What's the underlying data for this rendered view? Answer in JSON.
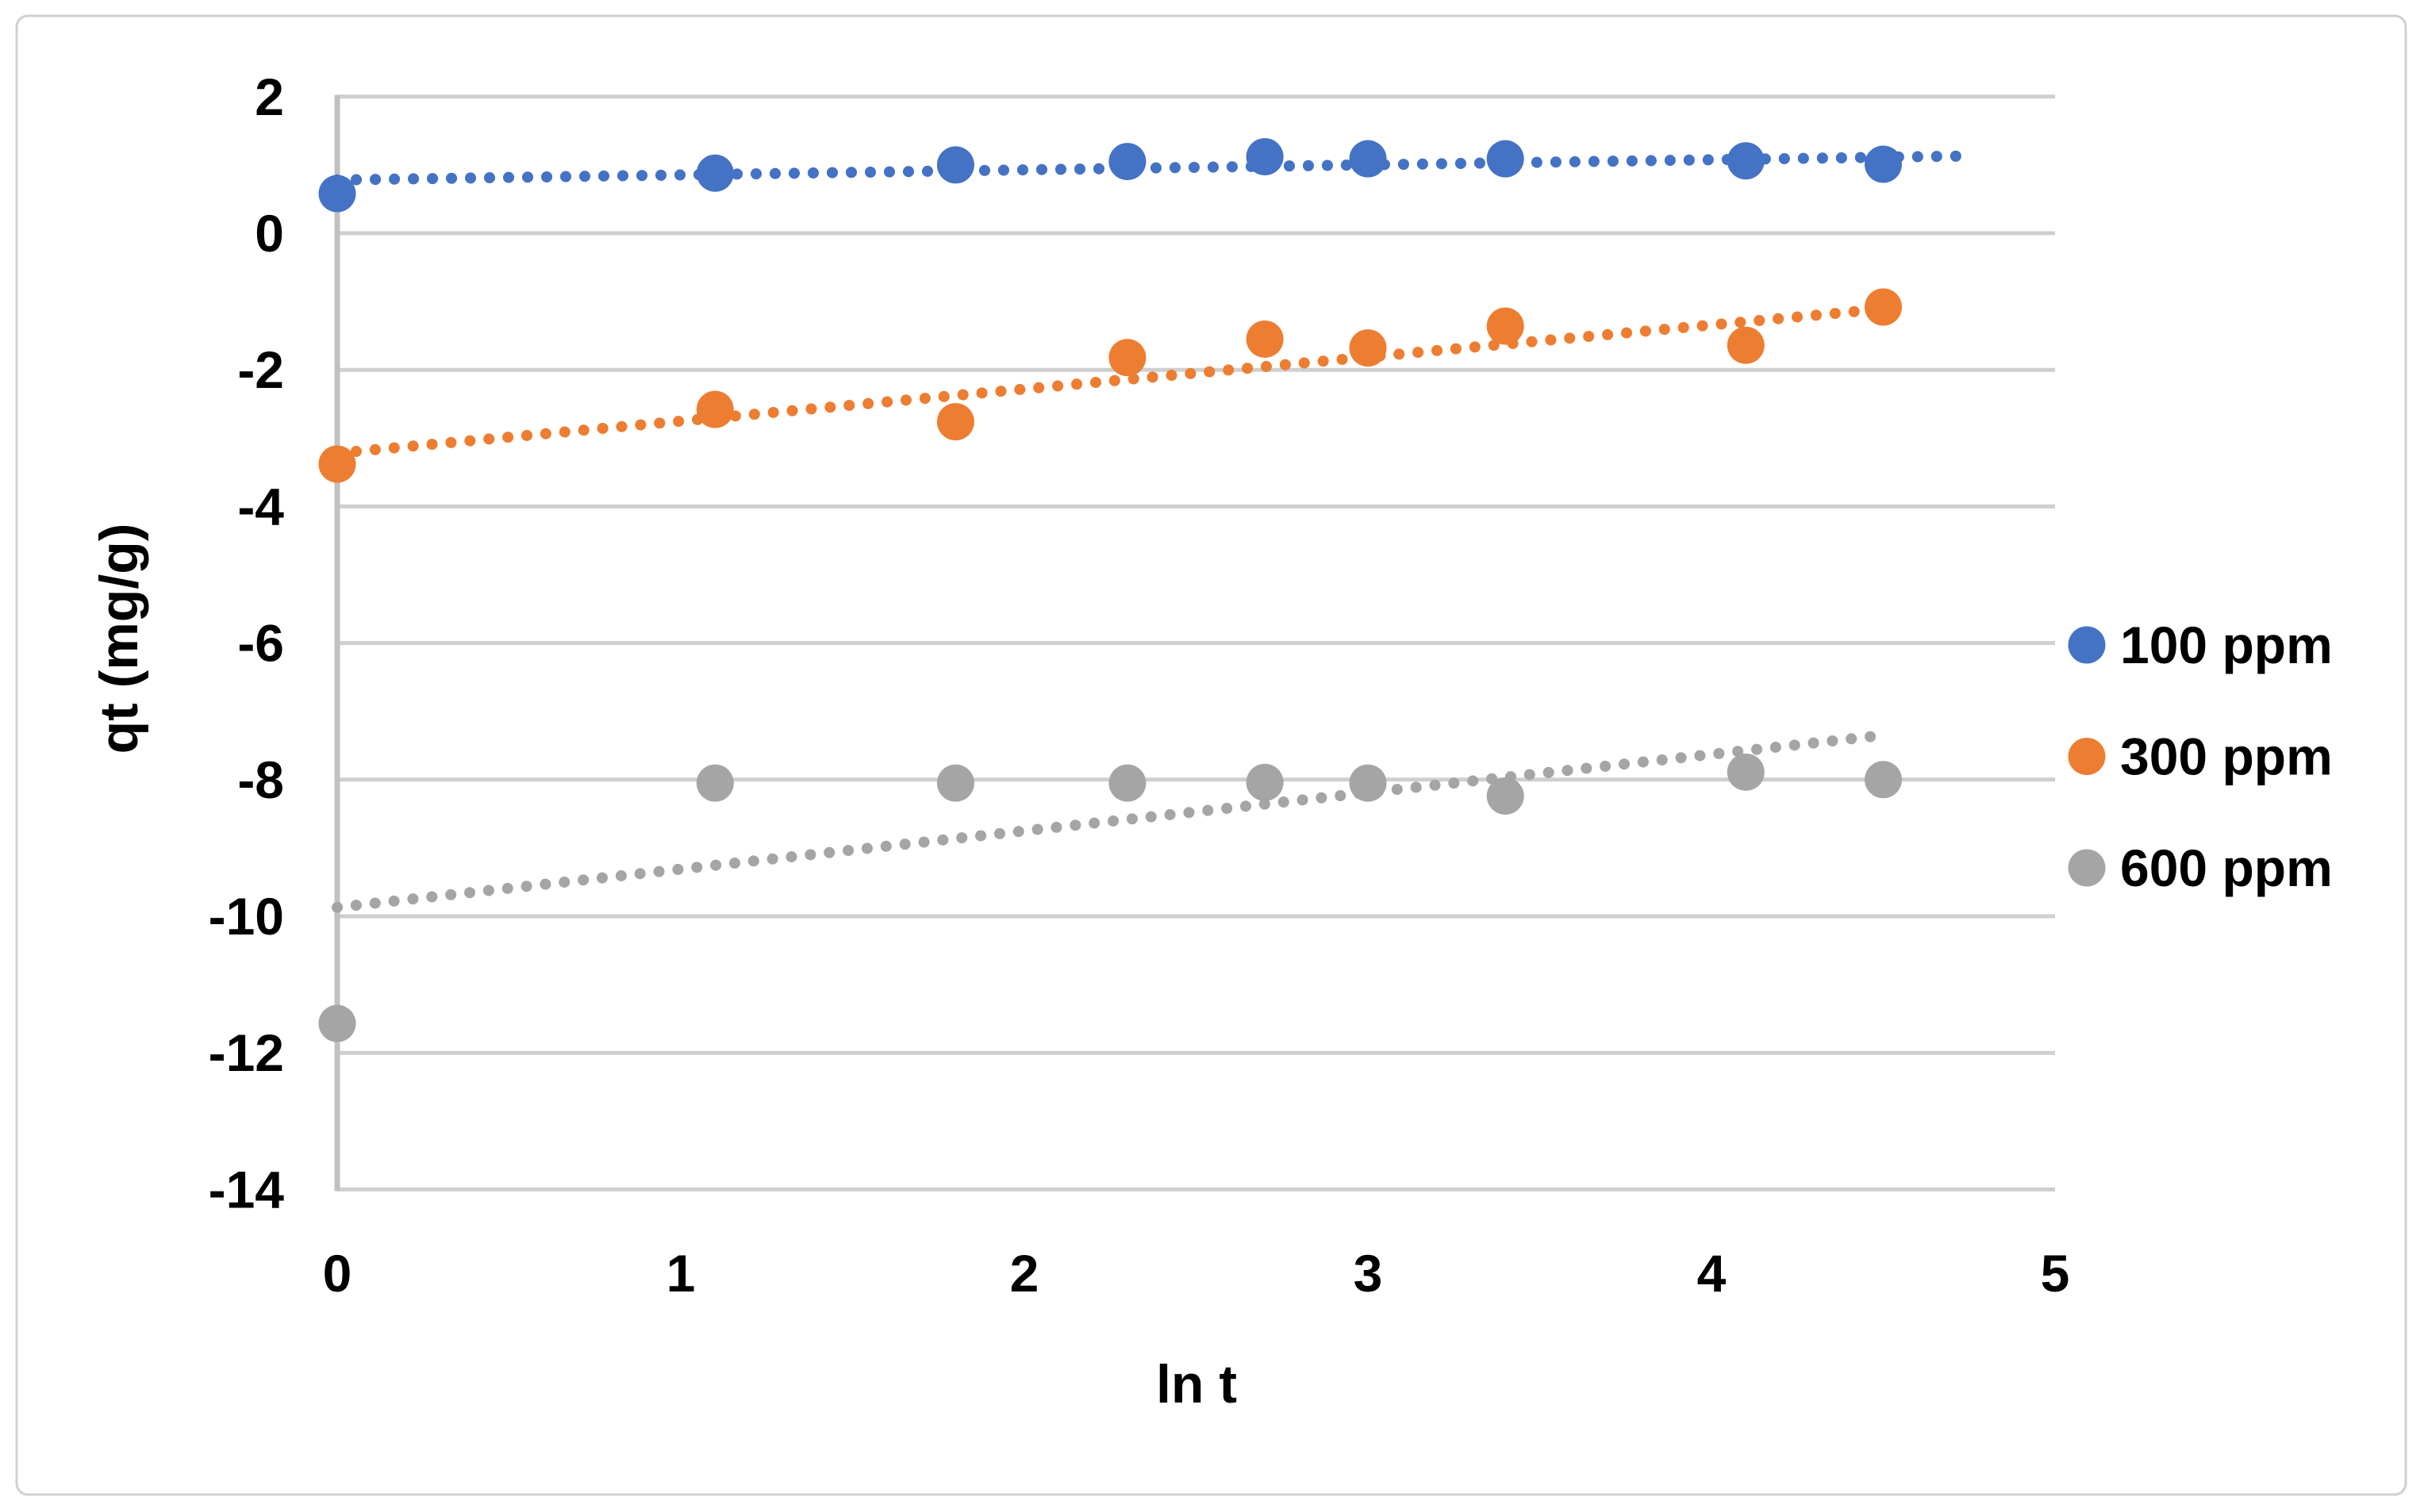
{
  "figure": {
    "background": "#ffffff",
    "border_color": "#d0d0d0"
  },
  "colors": {
    "gridline": "#cfcfcf",
    "axis_line": "#c0c0c0",
    "text": "#000000",
    "blue": "#4472C4",
    "orange": "#ED7D31",
    "gray": "#A5A5A5"
  },
  "chart_data": {
    "type": "scatter",
    "title": "",
    "xlabel": "ln t",
    "ylabel": "qt (mg/g)",
    "xlim": [
      0,
      5
    ],
    "ylim": [
      -14,
      2
    ],
    "xticks": [
      0,
      1,
      2,
      3,
      4,
      5
    ],
    "xtick_labels": [
      "0",
      "1",
      "2",
      "3",
      "4",
      "5"
    ],
    "yticks": [
      2,
      0,
      -2,
      -4,
      -6,
      -8,
      -10,
      -12,
      -14
    ],
    "ytick_labels": [
      "2",
      "0",
      "-2",
      "-4",
      "-6",
      "-8",
      "-10",
      "-12",
      "-14"
    ],
    "grid": "horizontal",
    "legend_position": "right",
    "x": [
      0,
      1.1,
      1.8,
      2.3,
      2.7,
      3.0,
      3.4,
      4.1,
      4.5
    ],
    "series": [
      {
        "name": "100 ppm",
        "color": "#4472C4",
        "values": [
          0.58,
          0.88,
          1.0,
          1.05,
          1.12,
          1.09,
          1.09,
          1.06,
          1.01
        ],
        "trendline": {
          "style": "dotted",
          "x1": 0,
          "y1": 0.78,
          "x2": 4.73,
          "y2": 1.13
        }
      },
      {
        "name": "300 ppm",
        "color": "#ED7D31",
        "values": [
          -3.38,
          -2.58,
          -2.76,
          -1.82,
          -1.55,
          -1.68,
          -1.36,
          -1.64,
          -1.08
        ],
        "trendline": {
          "style": "dotted",
          "x1": 0,
          "y1": -3.22,
          "x2": 4.56,
          "y2": -1.08
        }
      },
      {
        "name": "600 ppm",
        "color": "#A5A5A5",
        "values": [
          -11.57,
          -8.05,
          -8.05,
          -8.05,
          -8.04,
          -8.05,
          -8.24,
          -7.89,
          -8.0
        ],
        "trendline": {
          "style": "dotted",
          "x1": 0,
          "y1": -9.87,
          "x2": 4.5,
          "y2": -7.35
        }
      }
    ]
  }
}
